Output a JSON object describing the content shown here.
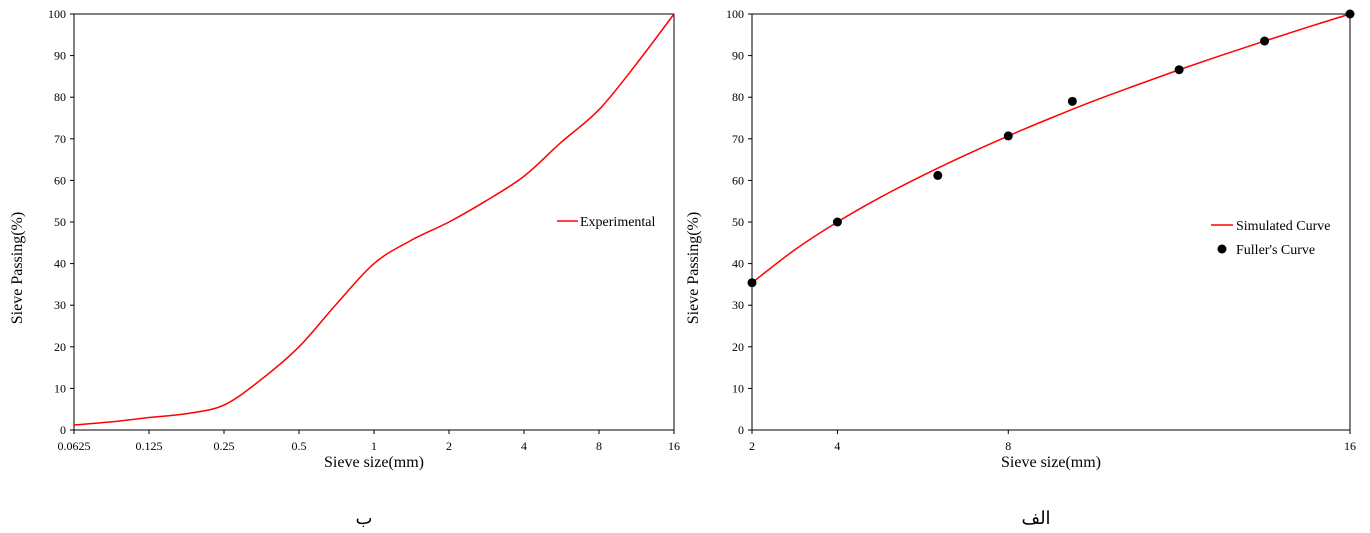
{
  "chart_data": [
    {
      "type": "line",
      "caption": "ب",
      "xlabel": "Sieve size(mm)",
      "ylabel": "Sieve Passing(%)",
      "x_scale": "log2",
      "x_ticks": [
        "0.0625",
        "0.125",
        "0.25",
        "0.5",
        "1",
        "2",
        "4",
        "8",
        "16"
      ],
      "x_tick_values": [
        0.0625,
        0.125,
        0.25,
        0.5,
        1,
        2,
        4,
        8,
        16
      ],
      "xlim": [
        0.0625,
        16
      ],
      "ylim": [
        0,
        100
      ],
      "y_ticks": [
        0,
        10,
        20,
        30,
        40,
        50,
        60,
        70,
        80,
        90,
        100
      ],
      "legend_position": "right",
      "series": [
        {
          "name": "Experimental",
          "color": "#ff0000",
          "x": [
            0.0625,
            0.09,
            0.125,
            0.18,
            0.25,
            0.35,
            0.5,
            0.7,
            1,
            1.4,
            2,
            2.8,
            4,
            5.6,
            8,
            11.3,
            16
          ],
          "y": [
            1.2,
            2,
            3,
            4,
            6,
            12,
            20,
            30,
            40,
            45.5,
            50,
            55,
            61,
            69,
            77,
            88,
            100
          ]
        }
      ]
    },
    {
      "type": "line",
      "caption": "الف",
      "xlabel": "Sieve size(mm)",
      "ylabel": "Sieve Passing(%)",
      "x_scale": "linear",
      "x_ticks": [
        "2",
        "4",
        "8",
        "16"
      ],
      "x_tick_values": [
        2,
        4,
        8,
        16
      ],
      "xlim": [
        2,
        16
      ],
      "ylim": [
        0,
        100
      ],
      "y_ticks": [
        0,
        10,
        20,
        30,
        40,
        50,
        60,
        70,
        80,
        90,
        100
      ],
      "legend_position": "right",
      "series": [
        {
          "name": "Simulated Curve",
          "color": "#ff0000",
          "style": "line",
          "x": [
            2,
            3,
            4,
            5,
            6,
            7,
            8,
            9,
            10,
            11,
            12,
            13,
            14,
            15,
            16
          ],
          "y": [
            35.4,
            43.3,
            50,
            55.9,
            61.2,
            66.1,
            70.7,
            75,
            79.1,
            82.9,
            86.6,
            90.1,
            93.5,
            96.8,
            100
          ]
        },
        {
          "name": "Fuller's Curve",
          "color": "#000000",
          "style": "marker",
          "x": [
            2,
            4,
            6.35,
            8,
            9.5,
            12,
            14,
            16
          ],
          "y": [
            35.4,
            50,
            61.2,
            70.7,
            79,
            86.6,
            93.5,
            100
          ]
        }
      ]
    }
  ]
}
